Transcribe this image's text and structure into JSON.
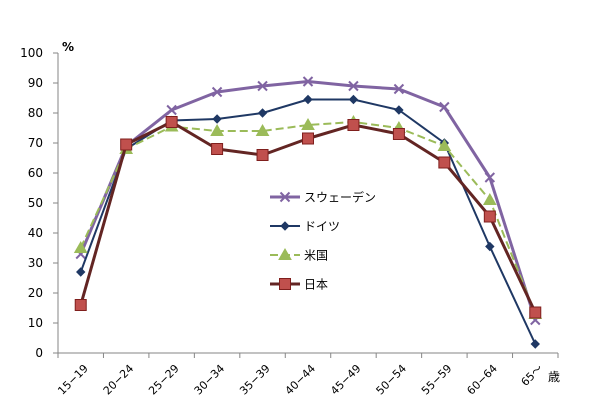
{
  "chart_data": {
    "type": "line",
    "title": "",
    "xlabel": "",
    "ylabel": "",
    "y_unit": "%",
    "x_unit": "歳",
    "ylim": [
      0,
      100
    ],
    "ytick_step": 10,
    "grid": false,
    "legend_position": "center-right",
    "categories": [
      "15−19",
      "20−24",
      "25−29",
      "30−34",
      "35−39",
      "40−44",
      "45−49",
      "50−54",
      "55−59",
      "60−64",
      "65～"
    ],
    "series": [
      {
        "name": "スウェーデン",
        "color": "#8064A2",
        "marker": "x",
        "dash": "solid",
        "values": [
          33,
          69,
          81,
          87,
          89,
          90.5,
          89,
          88,
          82,
          58.5,
          11
        ]
      },
      {
        "name": "ドイツ",
        "color": "#1F3864",
        "marker": "diamond",
        "dash": "solid",
        "values": [
          27,
          68,
          77.5,
          78,
          80,
          84.5,
          84.5,
          81,
          70,
          35.5,
          3
        ]
      },
      {
        "name": "米国",
        "color": "#9BBB59",
        "marker": "triangle",
        "dash": "dashed",
        "values": [
          35,
          68,
          75.5,
          74,
          74,
          76,
          77,
          75,
          69,
          51,
          13
        ]
      },
      {
        "name": "日本",
        "color": "#632523",
        "marker": "square",
        "dash": "solid",
        "values": [
          16,
          69.5,
          77,
          68,
          66,
          71.5,
          76,
          73,
          63.5,
          45.5,
          13.5
        ]
      }
    ]
  }
}
